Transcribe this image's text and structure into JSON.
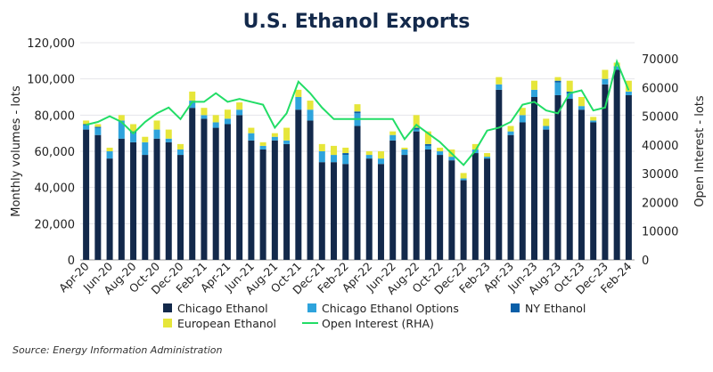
{
  "chart_data": {
    "type": "bar",
    "stacked": true,
    "title": "U.S. Ethanol Exports",
    "ylabel": "Monthly volumes - lots",
    "y2label": "Open Interest - lots",
    "ylim": [
      0,
      120000
    ],
    "y2lim": [
      0,
      70000
    ],
    "yticks": [
      "0",
      "20,000",
      "40,000",
      "60,000",
      "80,000",
      "100,000",
      "120,000"
    ],
    "y2ticks": [
      "0",
      "10000",
      "20000",
      "30000",
      "40000",
      "50000",
      "60000",
      "70000"
    ],
    "categories": [
      "Apr-20",
      "May-20",
      "Jun-20",
      "Jul-20",
      "Aug-20",
      "Sep-20",
      "Oct-20",
      "Nov-20",
      "Dec-20",
      "Jan-21",
      "Feb-21",
      "Mar-21",
      "Apr-21",
      "May-21",
      "Jun-21",
      "Jul-21",
      "Aug-21",
      "Sep-21",
      "Oct-21",
      "Nov-21",
      "Dec-21",
      "Jan-22",
      "Feb-22",
      "Mar-22",
      "Apr-22",
      "May-22",
      "Jun-22",
      "Jul-22",
      "Aug-22",
      "Sep-22",
      "Oct-22",
      "Nov-22",
      "Dec-22",
      "Jan-23",
      "Feb-23",
      "Mar-23",
      "Apr-23",
      "May-23",
      "Jun-23",
      "Jul-23",
      "Aug-23",
      "Sep-23",
      "Oct-23",
      "Nov-23",
      "Dec-23",
      "Jan-24",
      "Feb-24"
    ],
    "tick_labels": [
      "Apr-20",
      "Jun-20",
      "Aug-20",
      "Oct-20",
      "Dec-20",
      "Feb-21",
      "Apr-21",
      "Jun-21",
      "Aug-21",
      "Oct-21",
      "Dec-21",
      "Feb-22",
      "Apr-22",
      "Jun-22",
      "Aug-22",
      "Oct-22",
      "Dec-22",
      "Feb-23",
      "Apr-23",
      "Jun-23",
      "Aug-23",
      "Oct-23",
      "Dec-23",
      "Feb-24"
    ],
    "series": [
      {
        "name": "Chicago Ethanol",
        "color": "#13294b",
        "values": [
          72000,
          69000,
          56000,
          67000,
          65000,
          58000,
          67000,
          65000,
          58000,
          84000,
          78000,
          73000,
          75000,
          80000,
          66000,
          61000,
          66000,
          64000,
          83000,
          77000,
          54000,
          54000,
          53000,
          74000,
          56000,
          53000,
          66000,
          58000,
          71000,
          61000,
          58000,
          55000,
          44000,
          59000,
          56000,
          94000,
          69000,
          76000,
          90000,
          72000,
          91000,
          89000,
          83000,
          76000,
          97000,
          105000,
          91000
        ]
      },
      {
        "name": "Chicago Ethanol Options",
        "color": "#2ea3dc",
        "values": [
          2500,
          4000,
          4000,
          10000,
          5000,
          7000,
          5000,
          2000,
          3000,
          4000,
          2000,
          3000,
          3000,
          3000,
          4000,
          2000,
          2000,
          2000,
          7000,
          6000,
          6000,
          4000,
          5000,
          7000,
          2000,
          3000,
          3000,
          3000,
          1000,
          2000,
          2000,
          2000,
          1000,
          2000,
          1000,
          3000,
          2000,
          4000,
          4000,
          2000,
          7000,
          3000,
          2000,
          1000,
          3000,
          2000,
          2000
        ]
      },
      {
        "name": "NY Ethanol",
        "color": "#0a5fa8",
        "values": [
          500,
          500,
          0,
          0,
          1000,
          0,
          0,
          0,
          0,
          0,
          0,
          0,
          0,
          0,
          0,
          0,
          0,
          0,
          0,
          0,
          0,
          0,
          1000,
          1000,
          0,
          0,
          0,
          0,
          1000,
          1000,
          0,
          0,
          0,
          0,
          0,
          0,
          0,
          0,
          0,
          0,
          1000,
          1000,
          0,
          0,
          0,
          0,
          0
        ]
      },
      {
        "name": "European Ethanol",
        "color": "#e6e63a",
        "values": [
          2000,
          1500,
          2000,
          3000,
          4000,
          3000,
          5000,
          5000,
          3000,
          5000,
          4000,
          4000,
          5000,
          4000,
          3000,
          2000,
          2000,
          7000,
          4000,
          5000,
          4000,
          5000,
          3000,
          4000,
          2000,
          4000,
          2000,
          1000,
          7000,
          7000,
          2000,
          4000,
          3000,
          3000,
          2000,
          4000,
          3000,
          4000,
          5000,
          4000,
          2000,
          6000,
          5000,
          2000,
          5000,
          2000,
          6000
        ]
      }
    ],
    "line": {
      "name": "Open Interest (RHA)",
      "color": "#22dd66",
      "axis": "right",
      "values": [
        47000,
        48000,
        50000,
        48000,
        44000,
        48000,
        51000,
        53000,
        49000,
        55000,
        55000,
        58000,
        55000,
        56000,
        55000,
        54000,
        46000,
        51000,
        62000,
        58000,
        53000,
        49000,
        49000,
        49000,
        49000,
        49000,
        49000,
        42000,
        47000,
        44000,
        41000,
        37000,
        33000,
        38000,
        45000,
        46000,
        48000,
        54000,
        55000,
        52000,
        51000,
        58000,
        59000,
        52000,
        53000,
        69000,
        59000
      ]
    },
    "legend_placement": "bottom",
    "grid": true
  },
  "source": "Source: Energy Information Administration"
}
